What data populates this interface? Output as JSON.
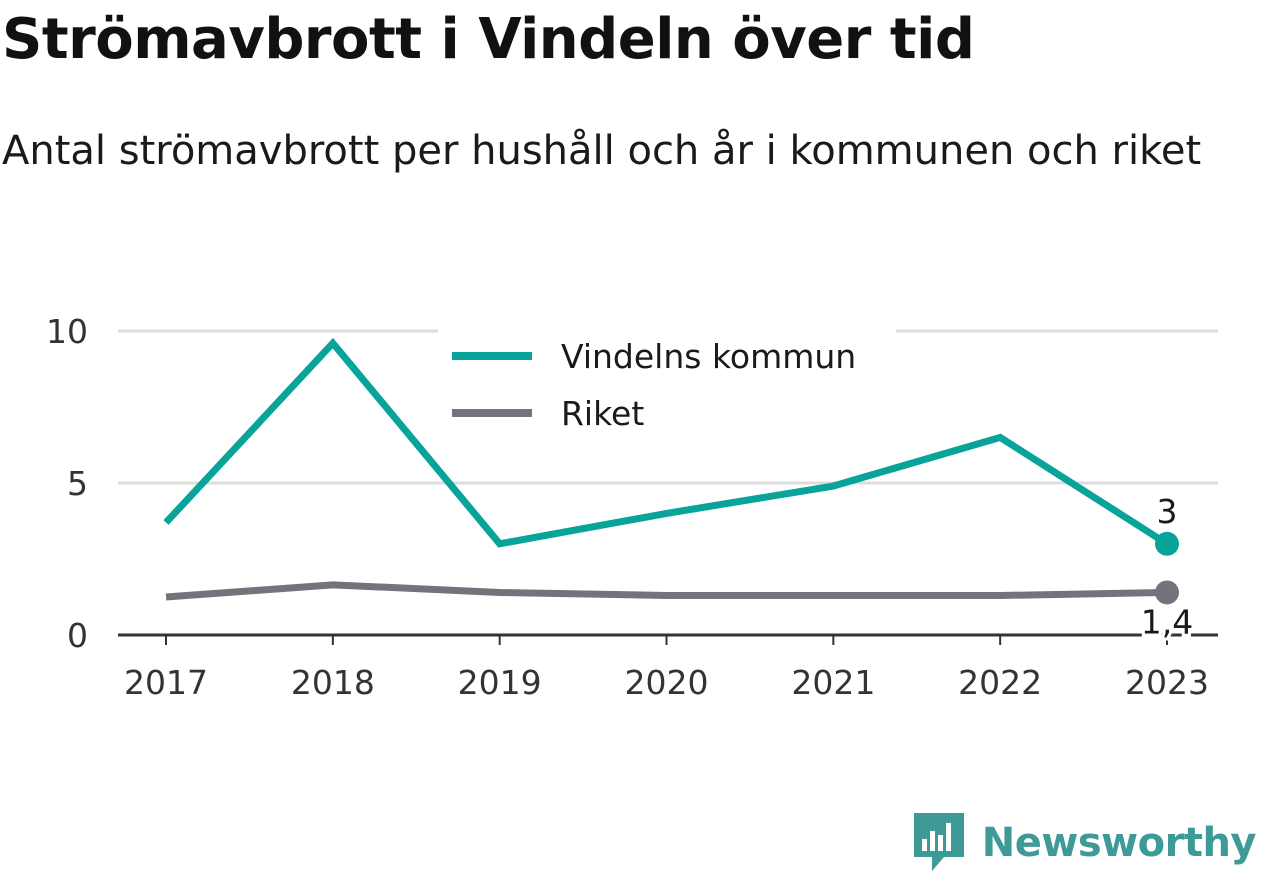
{
  "title": "Strömavbrott i Vindeln över tid",
  "subtitle": "Antal strömavbrott per hushåll och år i kommunen och riket",
  "brand": "Newsworthy",
  "chart_data": {
    "type": "line",
    "x": [
      "2017",
      "2018",
      "2019",
      "2020",
      "2021",
      "2022",
      "2023"
    ],
    "ylim": [
      0,
      10
    ],
    "yticks": [
      0,
      5,
      10
    ],
    "grid": true,
    "legend_position": "top-center",
    "series": [
      {
        "name": "Vindelns kommun",
        "color": "#08a399",
        "values": [
          3.7,
          9.6,
          3.0,
          4.0,
          4.9,
          6.5,
          3.0
        ],
        "end_label": "3"
      },
      {
        "name": "Riket",
        "color": "#74737b",
        "values": [
          1.25,
          1.65,
          1.4,
          1.3,
          1.3,
          1.3,
          1.4
        ],
        "end_label": "1,4"
      }
    ]
  }
}
